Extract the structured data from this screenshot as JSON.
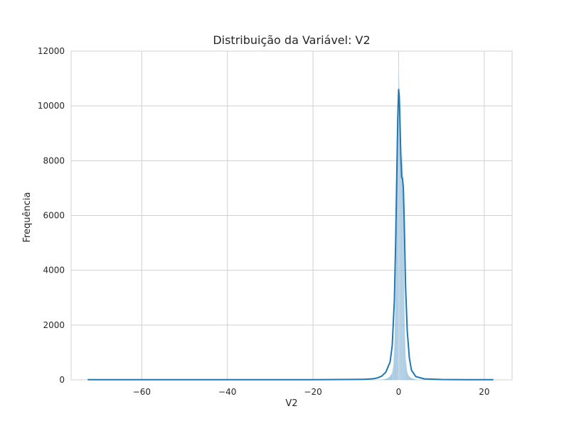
{
  "chart_data": {
    "type": "histogram",
    "title": "Distribuição da Variável: V2",
    "xlabel": "V2",
    "ylabel": "Frequência",
    "xlim": [
      -76.5,
      26.5
    ],
    "ylim": [
      0,
      12000
    ],
    "xticks": [
      -60,
      -40,
      -20,
      0,
      20
    ],
    "xtick_labels": [
      "−60",
      "−40",
      "−20",
      "0",
      "20"
    ],
    "yticks": [
      0,
      2000,
      4000,
      6000,
      8000,
      10000,
      12000
    ],
    "ytick_labels": [
      "0",
      "2000",
      "4000",
      "6000",
      "8000",
      "10000",
      "12000"
    ],
    "grid": true,
    "histogram": [
      {
        "x": -4.0,
        "y": 10
      },
      {
        "x": -3.5,
        "y": 20
      },
      {
        "x": -3.0,
        "y": 35
      },
      {
        "x": -2.5,
        "y": 70
      },
      {
        "x": -2.0,
        "y": 130
      },
      {
        "x": -1.5,
        "y": 260
      },
      {
        "x": -1.2,
        "y": 560
      },
      {
        "x": -0.9,
        "y": 1600
      },
      {
        "x": -0.6,
        "y": 4200
      },
      {
        "x": -0.3,
        "y": 7600
      },
      {
        "x": -0.1,
        "y": 9800
      },
      {
        "x": 0.0,
        "y": 11400
      },
      {
        "x": 0.1,
        "y": 10900
      },
      {
        "x": 0.25,
        "y": 9100
      },
      {
        "x": 0.45,
        "y": 7800
      },
      {
        "x": 0.65,
        "y": 7300
      },
      {
        "x": 0.85,
        "y": 8300
      },
      {
        "x": 1.1,
        "y": 7000
      },
      {
        "x": 1.35,
        "y": 2500
      },
      {
        "x": 1.6,
        "y": 900
      },
      {
        "x": 1.9,
        "y": 350
      },
      {
        "x": 2.3,
        "y": 160
      },
      {
        "x": 2.8,
        "y": 80
      },
      {
        "x": 3.4,
        "y": 40
      },
      {
        "x": 4.0,
        "y": 20
      }
    ],
    "kde": [
      {
        "x": -72.5,
        "y": 5
      },
      {
        "x": -60.0,
        "y": 5
      },
      {
        "x": -40.0,
        "y": 5
      },
      {
        "x": -20.0,
        "y": 6
      },
      {
        "x": -10.0,
        "y": 15
      },
      {
        "x": -8.0,
        "y": 20
      },
      {
        "x": -6.0,
        "y": 40
      },
      {
        "x": -5.0,
        "y": 70
      },
      {
        "x": -4.0,
        "y": 130
      },
      {
        "x": -3.0,
        "y": 280
      },
      {
        "x": -2.0,
        "y": 650
      },
      {
        "x": -1.5,
        "y": 1250
      },
      {
        "x": -1.0,
        "y": 2900
      },
      {
        "x": -0.7,
        "y": 5000
      },
      {
        "x": -0.4,
        "y": 7800
      },
      {
        "x": -0.2,
        "y": 9600
      },
      {
        "x": 0.0,
        "y": 10600
      },
      {
        "x": 0.15,
        "y": 10350
      },
      {
        "x": 0.3,
        "y": 9500
      },
      {
        "x": 0.5,
        "y": 8200
      },
      {
        "x": 0.7,
        "y": 7400
      },
      {
        "x": 0.9,
        "y": 7350
      },
      {
        "x": 1.1,
        "y": 7000
      },
      {
        "x": 1.3,
        "y": 5800
      },
      {
        "x": 1.6,
        "y": 3500
      },
      {
        "x": 2.0,
        "y": 1800
      },
      {
        "x": 2.5,
        "y": 800
      },
      {
        "x": 3.0,
        "y": 350
      },
      {
        "x": 4.0,
        "y": 120
      },
      {
        "x": 6.0,
        "y": 35
      },
      {
        "x": 10.0,
        "y": 12
      },
      {
        "x": 16.0,
        "y": 8
      },
      {
        "x": 22.0,
        "y": 6
      }
    ],
    "colors": {
      "fill": "#1f77b4",
      "line": "#1f77b4",
      "grid": "#d0d0d0",
      "frame": "#d0d0d0"
    }
  }
}
